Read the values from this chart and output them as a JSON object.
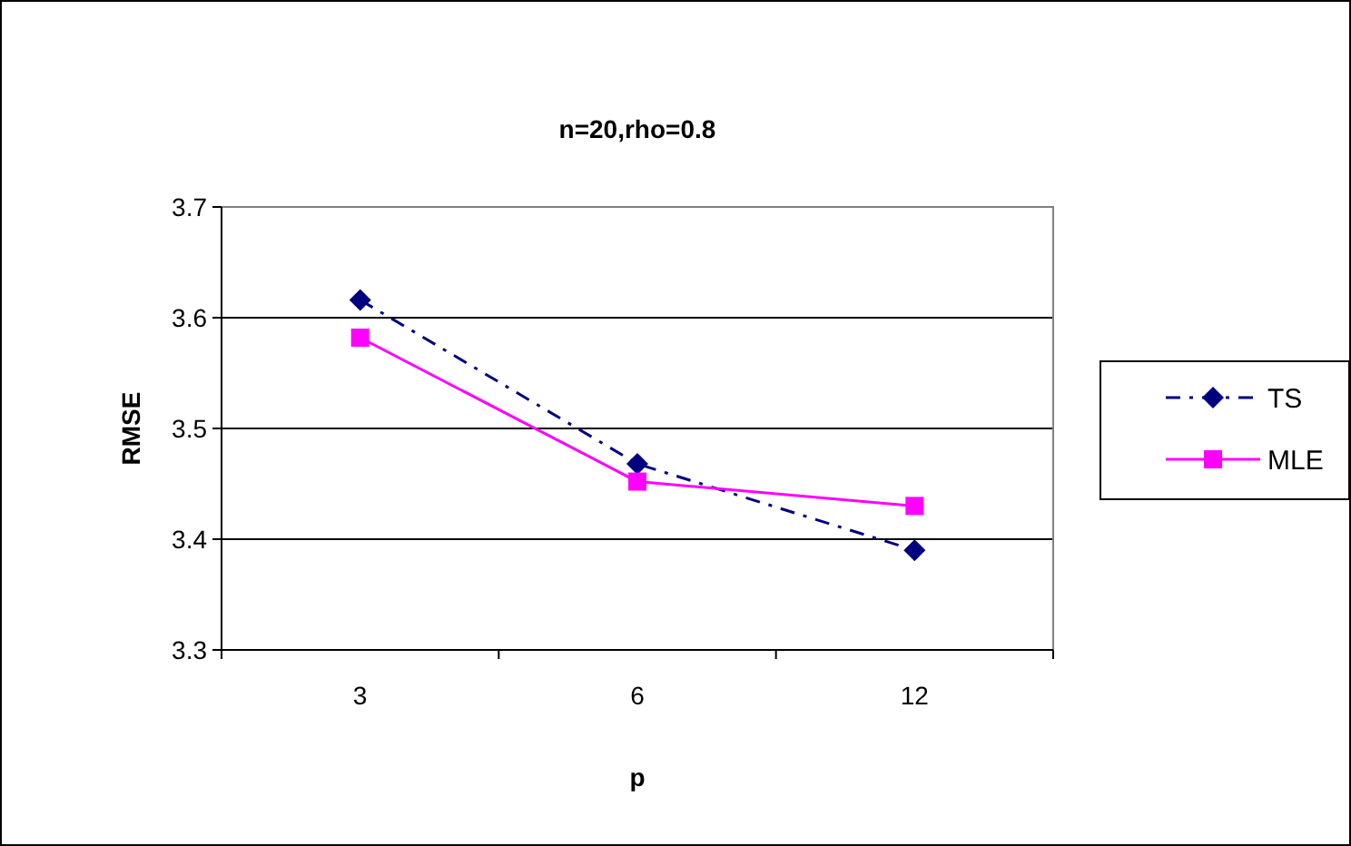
{
  "chart_data": {
    "type": "line",
    "title": "n=20,rho=0.8",
    "xlabel": "p",
    "ylabel": "RMSE",
    "categories": [
      "3",
      "6",
      "12"
    ],
    "series": [
      {
        "name": "TS",
        "color": "#000080",
        "values": [
          3.616,
          3.468,
          3.39
        ],
        "line_style": "dashed"
      },
      {
        "name": "MLE",
        "color": "#ff00ff",
        "values": [
          3.582,
          3.452,
          3.43
        ],
        "marker": "square"
      }
    ],
    "ylim": [
      3.3,
      3.7
    ],
    "yticks": [
      {
        "value": 3.3,
        "label": "3.3"
      },
      {
        "value": 3.4,
        "label": "3.4"
      },
      {
        "value": 3.5,
        "label": "3.5"
      },
      {
        "value": 3.6,
        "label": "3.6"
      },
      {
        "value": 3.7,
        "label": "3.7"
      }
    ],
    "grid": "y",
    "legend": "right",
    "marker": "diamond",
    "line_style": "solid"
  }
}
